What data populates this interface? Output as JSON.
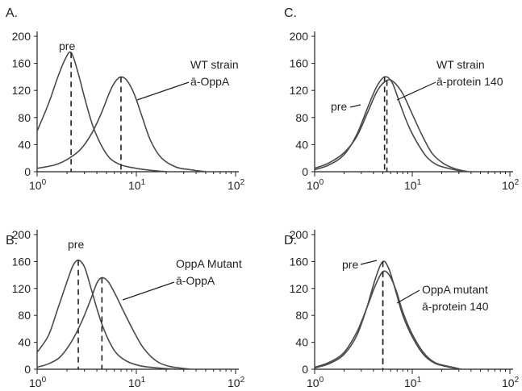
{
  "chart_data": [
    {
      "panel": "A.",
      "type": "line",
      "xscale": "log",
      "xlim": [
        1,
        100
      ],
      "ylim": [
        0,
        200
      ],
      "x_ticks": [
        "10",
        "10",
        "10"
      ],
      "x_tick_exponents": [
        "0",
        "1",
        "2"
      ],
      "y_ticks": [
        "0",
        "40",
        "80",
        "120",
        "160",
        "200"
      ],
      "series": [
        {
          "name": "pre",
          "peak_x": 2.2,
          "peak_y": 176,
          "points": [
            [
              1,
              60
            ],
            [
              1.3,
              100
            ],
            [
              1.6,
              138
            ],
            [
              1.9,
              165
            ],
            [
              2.2,
              176
            ],
            [
              2.6,
              145
            ],
            [
              3,
              110
            ],
            [
              3.6,
              70
            ],
            [
              4.4,
              40
            ],
            [
              5.4,
              20
            ],
            [
              7,
              10
            ],
            [
              10,
              5
            ],
            [
              14,
              2
            ],
            [
              20,
              0
            ]
          ]
        },
        {
          "name": "WT strain ā-OppA",
          "peak_x": 7,
          "peak_y": 140,
          "points": [
            [
              1,
              5
            ],
            [
              1.5,
              10
            ],
            [
              2,
              18
            ],
            [
              2.7,
              32
            ],
            [
              3.5,
              55
            ],
            [
              4.4,
              85
            ],
            [
              5.4,
              118
            ],
            [
              6.2,
              134
            ],
            [
              7,
              140
            ],
            [
              8,
              135
            ],
            [
              9.5,
              115
            ],
            [
              11.5,
              80
            ],
            [
              14,
              45
            ],
            [
              18,
              20
            ],
            [
              25,
              7
            ],
            [
              35,
              3
            ],
            [
              50,
              0
            ]
          ]
        }
      ],
      "annotations": [
        {
          "text": "pre",
          "target": "pre"
        },
        {
          "lines": [
            "WT strain",
            "ā-OppA"
          ],
          "target": "WT strain ā-OppA"
        }
      ]
    },
    {
      "panel": "B.",
      "type": "line",
      "xscale": "log",
      "xlim": [
        1,
        100
      ],
      "ylim": [
        0,
        200
      ],
      "x_ticks": [
        "10",
        "10",
        "10"
      ],
      "x_tick_exponents": [
        "0",
        "1",
        "2"
      ],
      "y_ticks": [
        "0",
        "40",
        "80",
        "120",
        "160",
        "200"
      ],
      "series": [
        {
          "name": "pre",
          "peak_x": 2.6,
          "peak_y": 162,
          "points": [
            [
              1,
              25
            ],
            [
              1.3,
              50
            ],
            [
              1.6,
              88
            ],
            [
              2,
              130
            ],
            [
              2.3,
              154
            ],
            [
              2.6,
              162
            ],
            [
              3,
              152
            ],
            [
              3.5,
              120
            ],
            [
              4.2,
              80
            ],
            [
              5,
              50
            ],
            [
              6.2,
              25
            ],
            [
              8,
              12
            ],
            [
              11,
              5
            ],
            [
              16,
              2
            ],
            [
              25,
              0
            ]
          ]
        },
        {
          "name": "OppA Mutant ā-OppA",
          "peak_x": 4.5,
          "peak_y": 136,
          "points": [
            [
              1,
              3
            ],
            [
              1.3,
              8
            ],
            [
              1.7,
              18
            ],
            [
              2.2,
              40
            ],
            [
              2.8,
              70
            ],
            [
              3.5,
              105
            ],
            [
              4,
              128
            ],
            [
              4.5,
              136
            ],
            [
              5.2,
              130
            ],
            [
              6.2,
              110
            ],
            [
              7.5,
              85
            ],
            [
              9.5,
              55
            ],
            [
              12,
              30
            ],
            [
              16,
              12
            ],
            [
              22,
              4
            ],
            [
              35,
              0
            ]
          ]
        }
      ],
      "annotations": [
        {
          "text": "pre",
          "target": "pre"
        },
        {
          "lines": [
            "OppA Mutant",
            "ā-OppA"
          ],
          "target": "OppA Mutant ā-OppA"
        }
      ]
    },
    {
      "panel": "C.",
      "type": "line",
      "xscale": "log",
      "xlim": [
        1,
        100
      ],
      "ylim": [
        0,
        200
      ],
      "x_ticks": [
        "10",
        "10",
        "10"
      ],
      "x_tick_exponents": [
        "0",
        "1",
        "2"
      ],
      "y_ticks": [
        "0",
        "40",
        "80",
        "120",
        "160",
        "200"
      ],
      "series": [
        {
          "name": "pre",
          "peak_x": 5.2,
          "peak_y": 140,
          "points": [
            [
              1,
              3
            ],
            [
              1.4,
              10
            ],
            [
              2,
              25
            ],
            [
              2.7,
              55
            ],
            [
              3.5,
              95
            ],
            [
              4.3,
              125
            ],
            [
              5.2,
              140
            ],
            [
              6.2,
              132
            ],
            [
              7.5,
              100
            ],
            [
              9,
              70
            ],
            [
              11,
              45
            ],
            [
              14,
              22
            ],
            [
              18,
              10
            ],
            [
              25,
              4
            ],
            [
              35,
              0
            ]
          ]
        },
        {
          "name": "WT strain ā-protein 140",
          "peak_x": 5.5,
          "peak_y": 135,
          "points": [
            [
              1,
              5
            ],
            [
              1.4,
              13
            ],
            [
              2,
              28
            ],
            [
              2.7,
              52
            ],
            [
              3.5,
              88
            ],
            [
              4.4,
              120
            ],
            [
              5.5,
              135
            ],
            [
              6.5,
              132
            ],
            [
              8,
              115
            ],
            [
              10,
              85
            ],
            [
              12.5,
              55
            ],
            [
              16,
              27
            ],
            [
              21,
              12
            ],
            [
              28,
              4
            ],
            [
              38,
              0
            ]
          ]
        }
      ],
      "annotations": [
        {
          "text": "pre",
          "target": "pre"
        },
        {
          "lines": [
            "WT strain",
            "ā-protein 140"
          ],
          "target": "WT strain ā-protein 140"
        }
      ]
    },
    {
      "panel": "D.",
      "type": "line",
      "xscale": "log",
      "xlim": [
        1,
        100
      ],
      "ylim": [
        0,
        200
      ],
      "x_ticks": [
        "10",
        "10",
        "10"
      ],
      "x_tick_exponents": [
        "0",
        "1",
        "2"
      ],
      "y_ticks": [
        "0",
        "40",
        "80",
        "120",
        "160",
        "200"
      ],
      "series": [
        {
          "name": "pre",
          "peak_x": 5,
          "peak_y": 160,
          "points": [
            [
              1,
              2
            ],
            [
              1.4,
              8
            ],
            [
              2,
              22
            ],
            [
              2.7,
              50
            ],
            [
              3.4,
              90
            ],
            [
              4.2,
              135
            ],
            [
              5,
              160
            ],
            [
              5.8,
              148
            ],
            [
              6.8,
              115
            ],
            [
              8,
              80
            ],
            [
              10,
              48
            ],
            [
              13,
              22
            ],
            [
              17,
              9
            ],
            [
              24,
              3
            ],
            [
              32,
              0
            ]
          ]
        },
        {
          "name": "OppA mutant ā-protein 140",
          "peak_x": 5,
          "peak_y": 145,
          "points": [
            [
              1,
              3
            ],
            [
              1.4,
              10
            ],
            [
              2,
              25
            ],
            [
              2.7,
              55
            ],
            [
              3.4,
              90
            ],
            [
              4.2,
              125
            ],
            [
              5,
              145
            ],
            [
              5.8,
              140
            ],
            [
              6.8,
              118
            ],
            [
              8,
              85
            ],
            [
              10,
              52
            ],
            [
              13,
              25
            ],
            [
              17,
              10
            ],
            [
              24,
              4
            ],
            [
              32,
              0
            ]
          ]
        }
      ],
      "annotations": [
        {
          "text": "pre",
          "target": "pre"
        },
        {
          "lines": [
            "OppA mutant",
            "ā-protein 140"
          ],
          "target": "OppA mutant ā-protein 140"
        }
      ]
    }
  ]
}
